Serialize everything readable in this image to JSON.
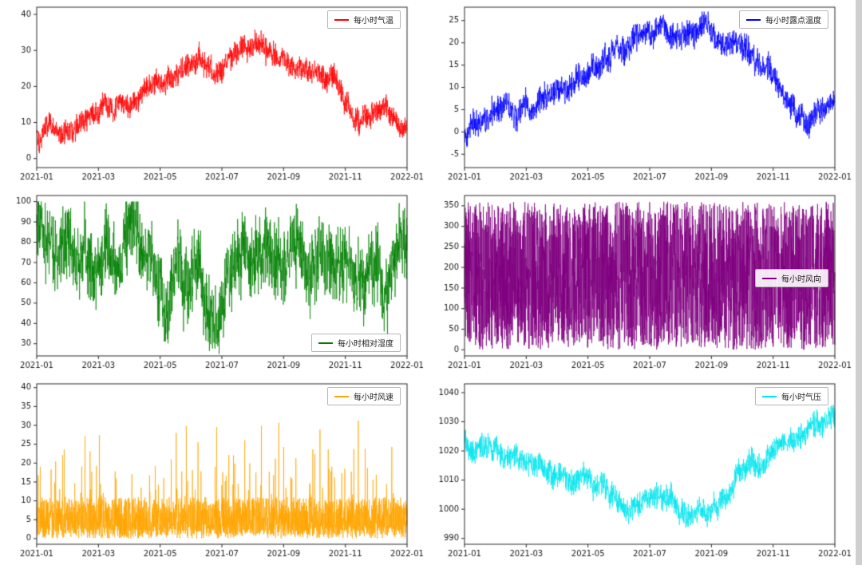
{
  "page": {
    "background": "#ffffff"
  },
  "chart_data": [
    {
      "type": "line",
      "name": "hourly-temperature",
      "legend": "每小时气温",
      "color": "#ff0000",
      "legend_pos": "top-right",
      "ylim": [
        -2.5,
        42
      ],
      "yticks": [
        0,
        10,
        20,
        30,
        40
      ],
      "xtick_positions": [
        0,
        2,
        4,
        6,
        8,
        10,
        12
      ],
      "xtick_labels": [
        "2021-01",
        "2021-03",
        "2021-05",
        "2021-07",
        "2021-09",
        "2021-11",
        "2022-01"
      ],
      "monthly_trend": [
        7,
        9,
        12,
        16,
        21,
        25,
        27,
        30,
        28,
        22,
        15,
        10,
        8
      ],
      "noise_type": "gauss",
      "noise_amp": 4,
      "clip": [
        -0.5,
        41.5
      ]
    },
    {
      "type": "line",
      "name": "hourly-dew-point",
      "legend": "每小时露点温度",
      "color": "#0000ff",
      "legend_pos": "top-right",
      "ylim": [
        -8,
        28
      ],
      "yticks": [
        -5,
        0,
        5,
        10,
        15,
        20,
        25
      ],
      "xtick_positions": [
        0,
        2,
        4,
        6,
        8,
        10,
        12
      ],
      "xtick_labels": [
        "2021-01",
        "2021-03",
        "2021-05",
        "2021-07",
        "2021-09",
        "2021-11",
        "2022-01"
      ],
      "monthly_trend": [
        0,
        3,
        6,
        9,
        13,
        17,
        21,
        23,
        22,
        18,
        14,
        3,
        6
      ],
      "noise_type": "gauss",
      "noise_amp": 3.5,
      "clip": [
        -7,
        27
      ]
    },
    {
      "type": "line",
      "name": "hourly-relative-humidity",
      "legend": "每小时相对湿度",
      "color": "#008000",
      "legend_pos": "bottom-right",
      "ylim": [
        24,
        103
      ],
      "yticks": [
        30,
        40,
        50,
        60,
        70,
        80,
        90,
        100
      ],
      "xtick_positions": [
        0,
        2,
        4,
        6,
        8,
        10,
        12
      ],
      "xtick_labels": [
        "2021-01",
        "2021-03",
        "2021-05",
        "2021-07",
        "2021-09",
        "2021-11",
        "2022-01"
      ],
      "monthly_trend": [
        82,
        80,
        76,
        72,
        66,
        70,
        68,
        72,
        74,
        76,
        74,
        72,
        70
      ],
      "noise_type": "gauss",
      "noise_amp": 22,
      "clip": [
        25,
        100
      ]
    },
    {
      "type": "line",
      "name": "hourly-wind-direction",
      "legend": "每小时风向",
      "color": "#800080",
      "legend_pos": "center-right",
      "ylim": [
        -15,
        375
      ],
      "yticks": [
        0,
        50,
        100,
        150,
        200,
        250,
        300,
        350
      ],
      "xtick_positions": [
        0,
        2,
        4,
        6,
        8,
        10,
        12
      ],
      "xtick_labels": [
        "2021-01",
        "2021-03",
        "2021-05",
        "2021-07",
        "2021-09",
        "2021-11",
        "2022-01"
      ],
      "monthly_trend": [
        180,
        180,
        180,
        180,
        180,
        180,
        180,
        180,
        180,
        180,
        180,
        180,
        180
      ],
      "noise_type": "uniform",
      "noise_amp": 180,
      "clip": [
        0,
        360
      ]
    },
    {
      "type": "line",
      "name": "hourly-wind-speed",
      "legend": "每小时风速",
      "color": "#ffa500",
      "legend_pos": "top-right",
      "ylim": [
        -1.5,
        41
      ],
      "yticks": [
        0,
        5,
        10,
        15,
        20,
        25,
        30,
        35,
        40
      ],
      "xtick_positions": [
        0,
        2,
        4,
        6,
        8,
        10,
        12
      ],
      "xtick_labels": [
        "2021-01",
        "2021-03",
        "2021-05",
        "2021-07",
        "2021-09",
        "2021-11",
        "2022-01"
      ],
      "monthly_trend": [
        7,
        7,
        8,
        8,
        8,
        7,
        7,
        7,
        7,
        7,
        7,
        7,
        7
      ],
      "noise_type": "spiky",
      "noise_amp": 6,
      "clip": [
        0,
        40
      ]
    },
    {
      "type": "line",
      "name": "hourly-pressure",
      "legend": "每小时气压",
      "color": "#00e5ee",
      "legend_pos": "top-right",
      "ylim": [
        988,
        1043
      ],
      "yticks": [
        990,
        1000,
        1010,
        1020,
        1030,
        1040
      ],
      "xtick_positions": [
        0,
        2,
        4,
        6,
        8,
        10,
        12
      ],
      "xtick_labels": [
        "2021-01",
        "2021-03",
        "2021-05",
        "2021-07",
        "2021-09",
        "2021-11",
        "2022-01"
      ],
      "monthly_trend": [
        1024,
        1021,
        1017,
        1013,
        1008,
        1004,
        1001,
        1000,
        1004,
        1011,
        1020,
        1026,
        1031
      ],
      "noise_type": "gauss",
      "noise_amp": 5,
      "clip": [
        991,
        1041
      ]
    }
  ]
}
